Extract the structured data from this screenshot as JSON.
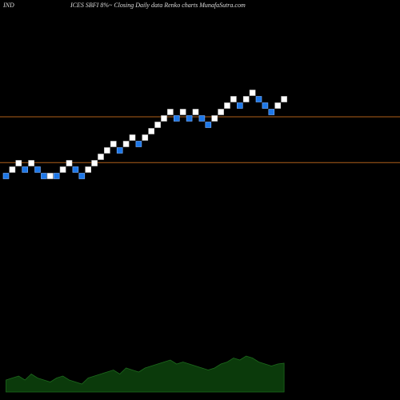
{
  "chart_data": {
    "type": "renko",
    "title_left": "IND",
    "title": "ICES SBFI 8%~  Closing Daily data  Renko  charts MunafaSutra.com",
    "open": [
      1,
      1,
      2,
      2,
      2,
      2,
      1,
      0,
      1,
      1,
      2,
      2,
      1,
      1,
      2,
      3,
      4,
      5,
      5,
      5,
      6,
      6,
      6,
      7,
      8,
      9,
      10,
      10,
      10,
      10,
      10,
      10,
      9,
      9,
      10,
      11,
      12,
      12,
      12,
      13,
      13,
      12,
      11,
      11,
      12
    ],
    "close": [
      0,
      2,
      3,
      1,
      3,
      1,
      0,
      1,
      0,
      2,
      3,
      1,
      0,
      2,
      3,
      4,
      5,
      6,
      4,
      6,
      7,
      5,
      7,
      8,
      9,
      10,
      11,
      9,
      11,
      9,
      11,
      9,
      8,
      10,
      11,
      12,
      13,
      11,
      13,
      14,
      12,
      11,
      10,
      12,
      13
    ],
    "up_color": "#ffffff",
    "down_color": "#1e78e8",
    "ylim": [
      -33,
      28
    ],
    "hlines": [
      9.75,
      2.6
    ],
    "hline_color": "#b0601a",
    "volume": [
      30,
      35,
      40,
      30,
      45,
      35,
      30,
      25,
      35,
      40,
      30,
      25,
      20,
      35,
      40,
      45,
      50,
      55,
      45,
      60,
      55,
      50,
      60,
      65,
      70,
      75,
      80,
      70,
      75,
      70,
      65,
      60,
      55,
      60,
      70,
      75,
      85,
      80,
      90,
      85,
      75,
      70,
      65,
      70,
      72
    ],
    "volume_lim": [
      0,
      100
    ],
    "volume_color": "#0b3a0b"
  }
}
